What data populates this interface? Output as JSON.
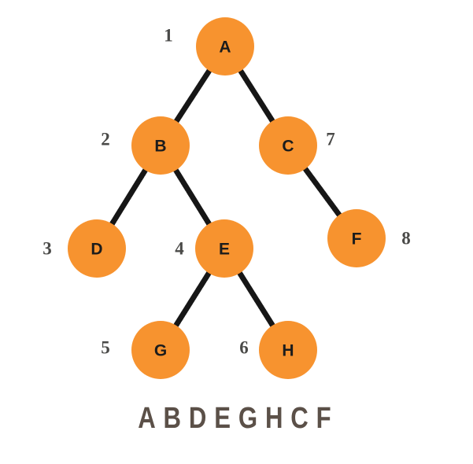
{
  "colors": {
    "node_fill": "#f7932f",
    "edge": "#161616",
    "order_text": "#4a4a48",
    "sequence_text": "#5b5048"
  },
  "tree": {
    "nodes": [
      {
        "id": "A",
        "label": "A",
        "order": "1"
      },
      {
        "id": "B",
        "label": "B",
        "order": "2"
      },
      {
        "id": "C",
        "label": "C",
        "order": "7"
      },
      {
        "id": "D",
        "label": "D",
        "order": "3"
      },
      {
        "id": "E",
        "label": "E",
        "order": "4"
      },
      {
        "id": "F",
        "label": "F",
        "order": "8"
      },
      {
        "id": "G",
        "label": "G",
        "order": "5"
      },
      {
        "id": "H",
        "label": "H",
        "order": "6"
      }
    ],
    "edges": [
      {
        "from": "A",
        "to": "B"
      },
      {
        "from": "A",
        "to": "C"
      },
      {
        "from": "B",
        "to": "D"
      },
      {
        "from": "B",
        "to": "E"
      },
      {
        "from": "C",
        "to": "F"
      },
      {
        "from": "E",
        "to": "G"
      },
      {
        "from": "E",
        "to": "H"
      }
    ]
  },
  "traversal_sequence": "ABDEGHCF"
}
